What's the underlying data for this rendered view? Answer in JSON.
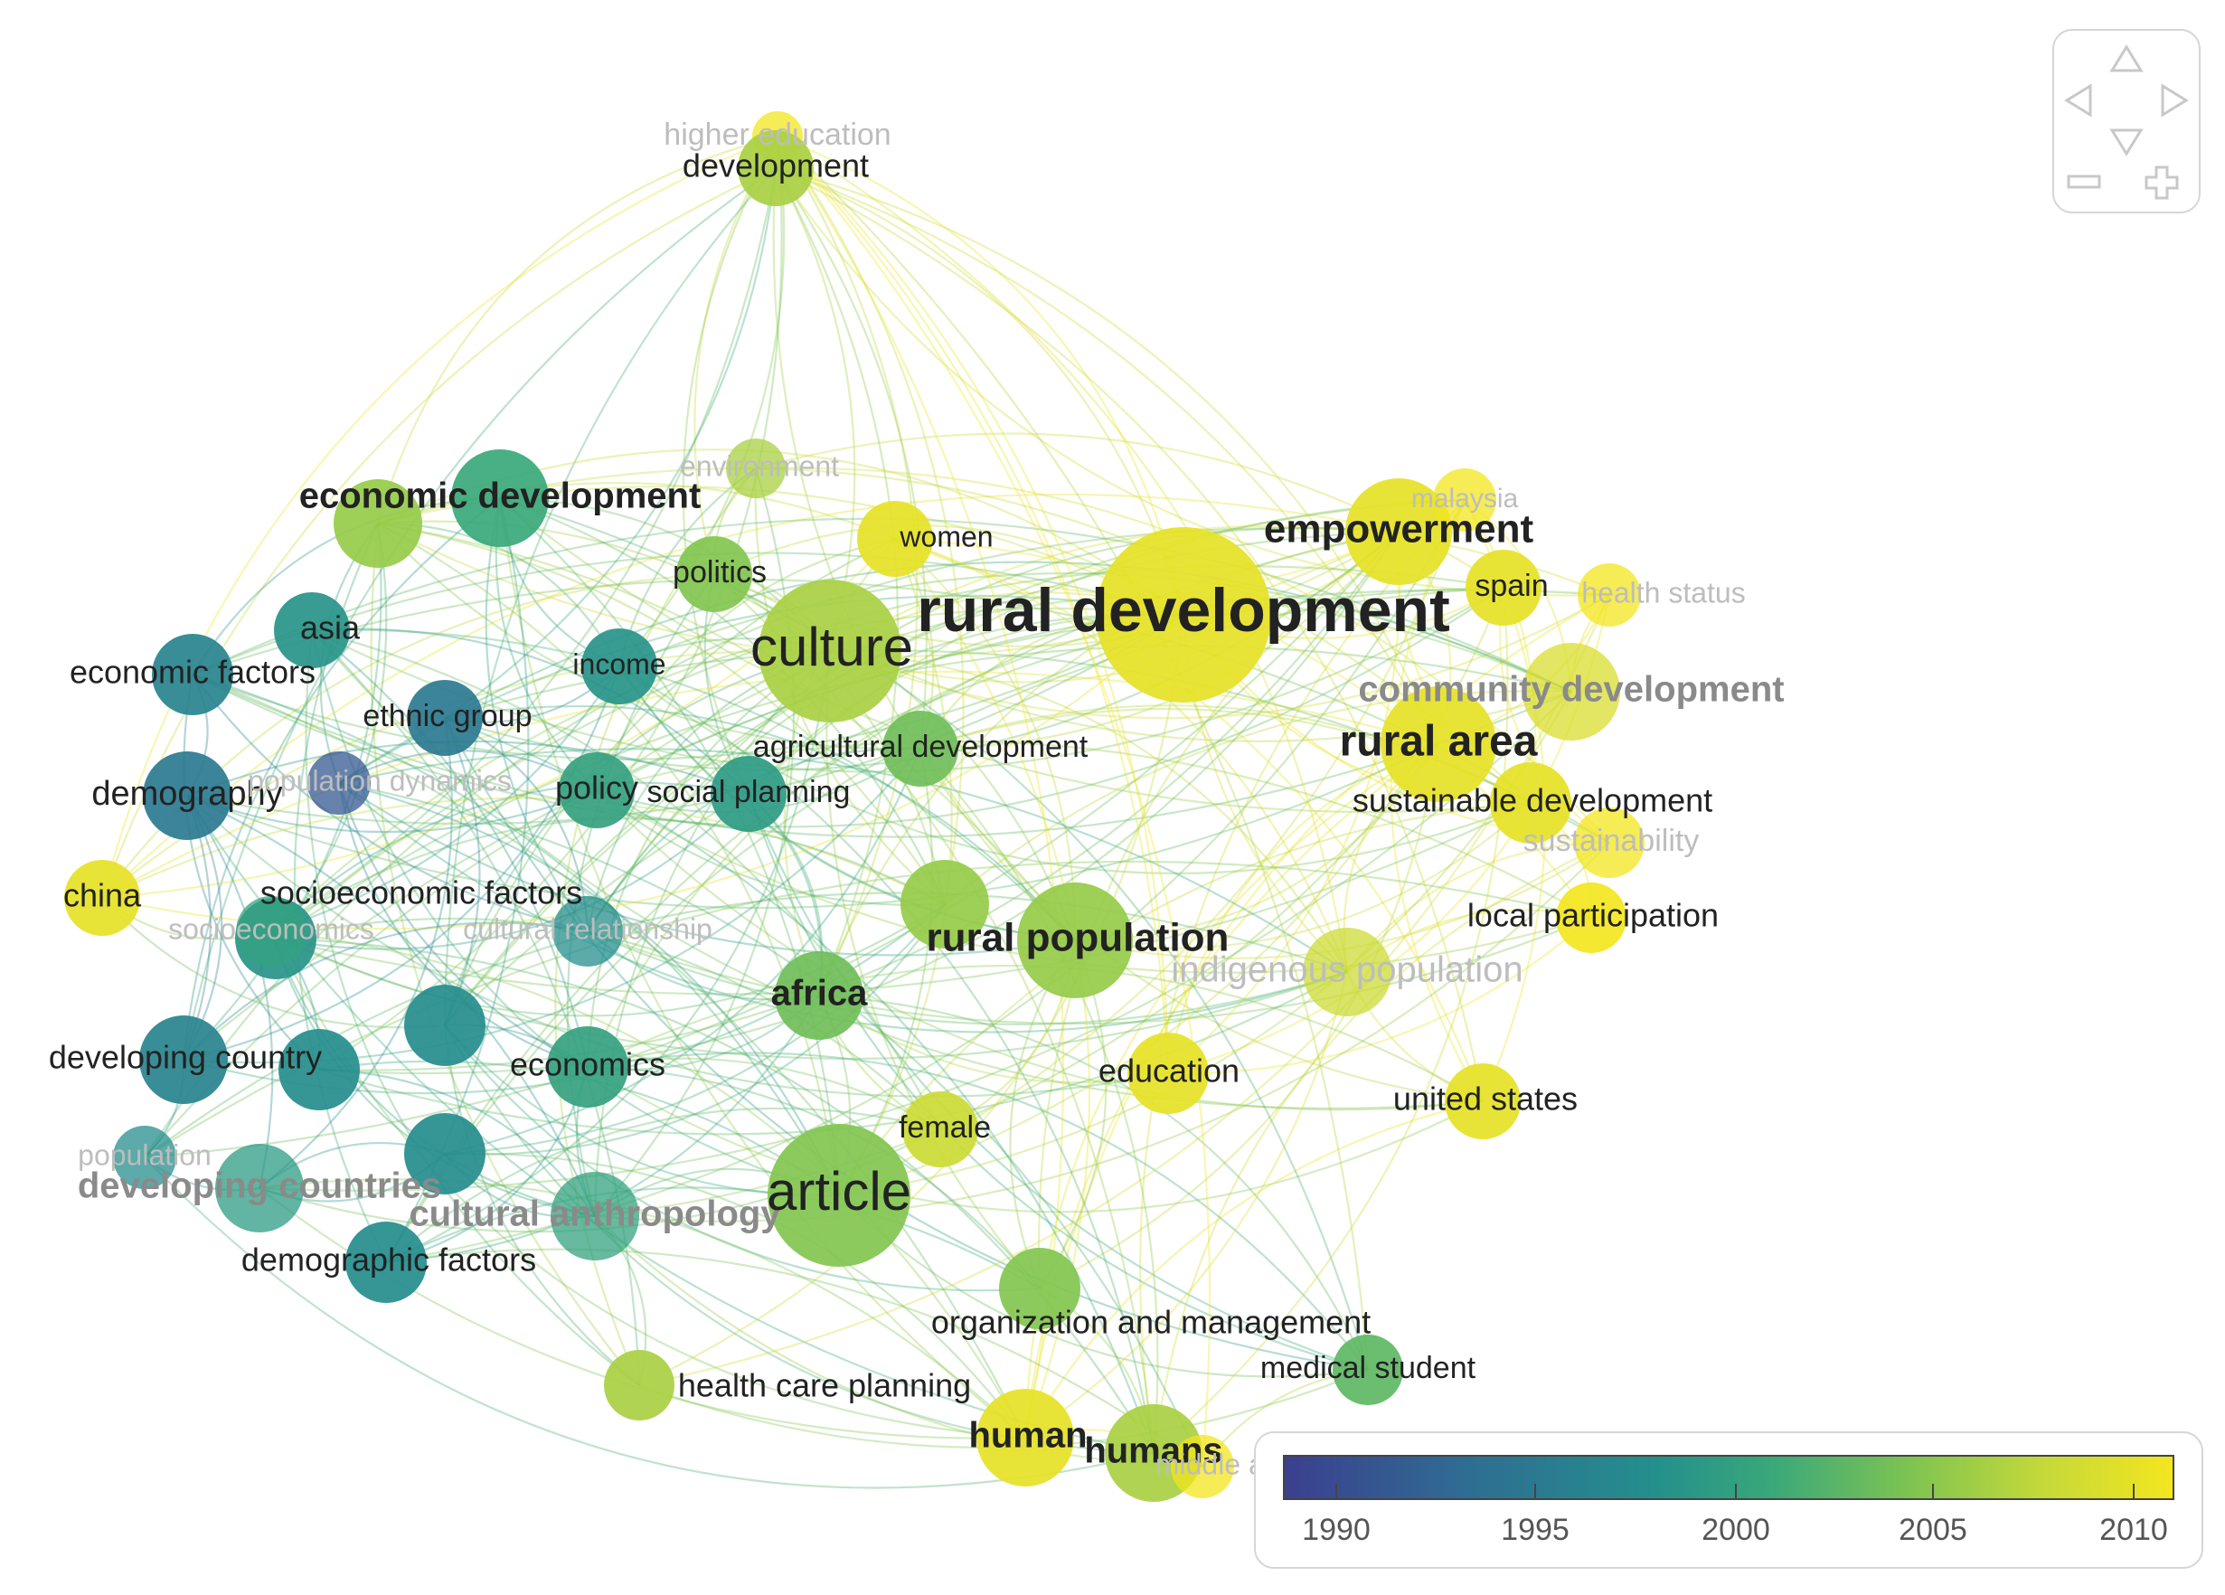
{
  "legend": {
    "years": [
      "1990",
      "1995",
      "2000",
      "2005",
      "2010"
    ],
    "min": 1989,
    "max": 2011,
    "colors": [
      "#3b3f8f",
      "#2f6c92",
      "#24908c",
      "#3aa87a",
      "#7cc352",
      "#c3d83a",
      "#f3e61e"
    ]
  },
  "controls": {
    "up": "up-arrow-icon",
    "down": "down-arrow-icon",
    "left": "left-arrow-icon",
    "right": "right-arrow-icon",
    "zoom_out": "minus-icon",
    "zoom_in": "plus-icon"
  },
  "nodes": [
    {
      "id": "higher-education",
      "label": "higher education",
      "year": 2011,
      "weight": 0.3,
      "faded": true
    },
    {
      "id": "development",
      "label": "development",
      "year": 2006,
      "weight": 1,
      "faded": false
    },
    {
      "id": "environment",
      "label": "environment",
      "year": 2006,
      "weight": 0.5,
      "faded": true
    },
    {
      "id": "economic-development",
      "label": "economic development",
      "year": 2000,
      "weight": 2,
      "bold": true
    },
    {
      "id": "economic-development-b",
      "label": "",
      "year": 2005,
      "weight": 1.5
    },
    {
      "id": "women",
      "label": "women",
      "year": 2010,
      "weight": 1
    },
    {
      "id": "politics",
      "label": "politics",
      "year": 2004,
      "weight": 1
    },
    {
      "id": "asia",
      "label": "asia",
      "year": 1997,
      "weight": 1
    },
    {
      "id": "economic-factors",
      "label": "economic factors",
      "year": 1995,
      "weight": 1.2
    },
    {
      "id": "income",
      "label": "income",
      "year": 1997,
      "weight": 1
    },
    {
      "id": "culture",
      "label": "culture",
      "year": 2006,
      "weight": 5
    },
    {
      "id": "rural-development",
      "label": "rural development",
      "year": 2010,
      "weight": 8,
      "bold": true
    },
    {
      "id": "empowerment",
      "label": "empowerment",
      "year": 2010,
      "weight": 2.5,
      "bold": true
    },
    {
      "id": "malaysia",
      "label": "malaysia",
      "year": 2011,
      "weight": 0.6,
      "faded": true
    },
    {
      "id": "spain",
      "label": "spain",
      "year": 2010,
      "weight": 1
    },
    {
      "id": "health-status",
      "label": "health status",
      "year": 2011,
      "weight": 0.6,
      "faded": true
    },
    {
      "id": "ethnic-group",
      "label": "ethnic group",
      "year": 1994,
      "weight": 1
    },
    {
      "id": "community-development",
      "label": "community development",
      "year": 2009,
      "weight": 2,
      "bold": true,
      "faded": true
    },
    {
      "id": "agricultural-development",
      "label": "agricultural development",
      "year": 2003,
      "weight": 1
    },
    {
      "id": "rural-area",
      "label": "rural area",
      "year": 2010,
      "weight": 3,
      "bold": true
    },
    {
      "id": "demography",
      "label": "demography",
      "year": 1994,
      "weight": 1.5
    },
    {
      "id": "population-dynamics",
      "label": "population dynamics",
      "year": 1991,
      "weight": 0.6,
      "faded": true
    },
    {
      "id": "policy",
      "label": "policy",
      "year": 1999,
      "weight": 1
    },
    {
      "id": "social-planning",
      "label": "social planning",
      "year": 1998,
      "weight": 1
    },
    {
      "id": "sustainable-development",
      "label": "sustainable development",
      "year": 2010,
      "weight": 1.2
    },
    {
      "id": "sustainability",
      "label": "sustainability",
      "year": 2011,
      "weight": 0.8,
      "faded": true
    },
    {
      "id": "china",
      "label": "china",
      "year": 2010,
      "weight": 1
    },
    {
      "id": "socioeconomic-factors",
      "label": "socioeconomic factors",
      "year": 1997,
      "weight": 1.2
    },
    {
      "id": "socioeconomics",
      "label": "socioeconomics",
      "year": 1999,
      "weight": 0.8,
      "faded": true
    },
    {
      "id": "cultural-relationship",
      "label": "cultural relationship",
      "year": 1996,
      "weight": 0.8,
      "faded": true
    },
    {
      "id": "green-node",
      "label": "",
      "year": 2005,
      "weight": 1.5
    },
    {
      "id": "rural-population",
      "label": "rural population",
      "year": 2005,
      "weight": 3,
      "bold": true
    },
    {
      "id": "local-participation",
      "label": "local participation",
      "year": 2011,
      "weight": 0.8
    },
    {
      "id": "indigenous-population",
      "label": "indigenous population",
      "year": 2008,
      "weight": 1.5,
      "faded": true
    },
    {
      "id": "africa",
      "label": "africa",
      "year": 2003,
      "weight": 1.5,
      "bold": true
    },
    {
      "id": "blue-node-a",
      "label": "",
      "year": 1996,
      "weight": 1.2
    },
    {
      "id": "developing-country",
      "label": "developing country",
      "year": 1995,
      "weight": 1.5
    },
    {
      "id": "blue-node-b",
      "label": "",
      "year": 1996,
      "weight": 1.2
    },
    {
      "id": "economics",
      "label": "economics",
      "year": 1999,
      "weight": 1.2
    },
    {
      "id": "education",
      "label": "education",
      "year": 2010,
      "weight": 1.2
    },
    {
      "id": "united-states",
      "label": "united states",
      "year": 2010,
      "weight": 1
    },
    {
      "id": "female",
      "label": "female",
      "year": 2008,
      "weight": 1
    },
    {
      "id": "population",
      "label": "population",
      "year": 1996,
      "weight": 0.6,
      "faded": true
    },
    {
      "id": "developing-countries",
      "label": "developing countries",
      "year": 1998,
      "weight": 1.5,
      "bold": true,
      "faded": true
    },
    {
      "id": "blue-node-c",
      "label": "",
      "year": 1996,
      "weight": 1.2
    },
    {
      "id": "cultural-anthropology",
      "label": "cultural anthropology",
      "year": 1999,
      "weight": 1.5,
      "bold": true,
      "faded": true
    },
    {
      "id": "article",
      "label": "article",
      "year": 2004,
      "weight": 5
    },
    {
      "id": "demographic-factors",
      "label": "demographic factors",
      "year": 1996,
      "weight": 1.2
    },
    {
      "id": "organization-and-management",
      "label": "organization and management",
      "year": 2004,
      "weight": 1.2
    },
    {
      "id": "medical-student",
      "label": "medical student",
      "year": 2002,
      "weight": 0.8
    },
    {
      "id": "health-care-planning",
      "label": "health care planning",
      "year": 2006,
      "weight": 0.8
    },
    {
      "id": "human",
      "label": "human",
      "year": 2010,
      "weight": 2,
      "bold": true
    },
    {
      "id": "humans",
      "label": "humans",
      "year": 2006,
      "weight": 2,
      "bold": true
    },
    {
      "id": "middle-aged",
      "label": "middle aged",
      "year": 2011,
      "weight": 0.6,
      "faded": true
    }
  ]
}
